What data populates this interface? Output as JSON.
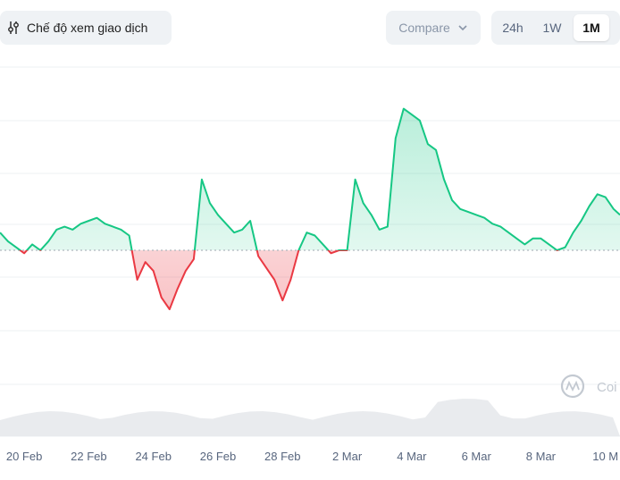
{
  "toolbar": {
    "mode_label": "Chế độ xem giao dịch",
    "mode_icon": "settings-sliders-icon",
    "compare_label": "Compare",
    "compare_icon": "chevron-down-icon",
    "ranges": [
      "24h",
      "1W",
      "1M"
    ],
    "active_range": "1M"
  },
  "watermark": {
    "icon": "coinmarketcap-logo-icon",
    "text": "Coi"
  },
  "colors": {
    "up": "#16c784",
    "down": "#ea3943",
    "up_fill": "#16c784",
    "down_fill": "#ea3943",
    "baseline": "#b0b6be",
    "grid": "#eef0f3",
    "volume": "#e3e6ea"
  },
  "chart_data": {
    "type": "area",
    "title": "",
    "xlabel": "",
    "ylabel": "",
    "x_tick_labels": [
      "20 Feb",
      "22 Feb",
      "24 Feb",
      "26 Feb",
      "28 Feb",
      "2 Mar",
      "4 Mar",
      "6 Mar",
      "8 Mar",
      "10 M"
    ],
    "x_tick_days": [
      1,
      3,
      5,
      7,
      9,
      11,
      13,
      15,
      17,
      19
    ],
    "x_range_days": [
      0.25,
      19.45
    ],
    "y_range": [
      0,
      100
    ],
    "baseline_value": 50,
    "grid": true,
    "legend": "none",
    "series": [
      {
        "days": [
          0.25,
          0.5,
          0.75,
          1.0,
          1.25,
          1.5,
          1.75,
          2.0,
          2.25,
          2.5,
          2.75,
          3.0,
          3.25,
          3.5,
          3.75,
          4.0,
          4.25,
          4.5,
          4.75,
          5.0,
          5.25,
          5.5,
          5.75,
          6.0,
          6.25,
          6.5,
          6.75,
          7.0,
          7.25,
          7.5,
          7.75,
          8.0,
          8.25,
          8.5,
          8.75,
          9.0,
          9.25,
          9.5,
          9.75,
          10.0,
          10.25,
          10.5,
          10.75,
          11.0,
          11.25,
          11.5,
          11.75,
          12.0,
          12.25,
          12.5,
          12.75,
          13.0,
          13.25,
          13.5,
          13.75,
          14.0,
          14.25,
          14.5,
          14.75,
          15.0,
          15.25,
          15.5,
          15.75,
          16.0,
          16.25,
          16.5,
          16.75,
          17.0,
          17.25,
          17.5,
          17.75,
          18.0,
          18.25,
          18.5,
          18.75,
          19.0,
          19.25,
          19.45
        ],
        "values": [
          56,
          53,
          51,
          49,
          52,
          50,
          53,
          57,
          58,
          57,
          59,
          60,
          61,
          59,
          58,
          57,
          55,
          40,
          46,
          43,
          34,
          30,
          37,
          43,
          47,
          74,
          66,
          62,
          59,
          56,
          57,
          60,
          48,
          44,
          40,
          33,
          40,
          50,
          56,
          55,
          52,
          49,
          50,
          50,
          74,
          66,
          62,
          57,
          58,
          88,
          98,
          96,
          94,
          86,
          84,
          74,
          67,
          64,
          63,
          62,
          61,
          59,
          58,
          56,
          54,
          52,
          54,
          54,
          52,
          50,
          51,
          56,
          60,
          65,
          69,
          68,
          64,
          62
        ]
      }
    ]
  }
}
